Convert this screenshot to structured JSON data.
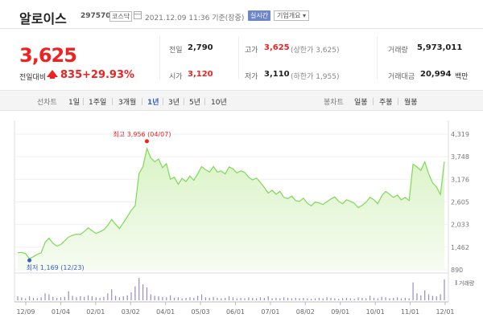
{
  "header": {
    "name": "알로이스",
    "code": "297570",
    "market": "코스닥",
    "datetime": "2021.12.09 11:36 기준(장중)",
    "realtime_label": "실시간",
    "overview_label": "기업개요 ▾"
  },
  "summary": {
    "price": "3,625",
    "change_label": "전일대비",
    "change_value": "835",
    "change_rate": "+29.93%",
    "prev_close_label": "전일",
    "prev_close": "2,790",
    "open_label": "시가",
    "open": "3,120",
    "high_label": "고가",
    "high": "3,625",
    "upper_limit": "(상한가 3,625)",
    "low_label": "저가",
    "low": "3,110",
    "lower_limit": "(하한가 1,955)",
    "volume_label": "거래량",
    "volume": "5,973,011",
    "amount_label": "거래대금",
    "amount": "20,994",
    "amount_unit": "백만"
  },
  "period_tabs": {
    "line_chart_label": "선차트",
    "items": [
      "1일",
      "1주일",
      "3개월",
      "1년",
      "3년",
      "5년",
      "10년"
    ],
    "active": "1년",
    "candle_label": "봉차트",
    "candle_items": [
      "일봉",
      "주봉",
      "월봉"
    ]
  },
  "chart_data": {
    "type": "area",
    "x_ticks": [
      "12/09",
      "01/04",
      "02/01",
      "03/02",
      "04/01",
      "05/03",
      "06/01",
      "07/01",
      "08/02",
      "09/01",
      "10/01",
      "11/01",
      "12/01"
    ],
    "y_ticks": [
      "4,319",
      "3,748",
      "3,176",
      "2,605",
      "2,033",
      "1,462",
      "890"
    ],
    "ylim": [
      890,
      4319
    ],
    "high_annotation": "최고 3,956 (04/07)",
    "low_annotation": "최저 1,169 (12/23)",
    "volume_label": "거래량",
    "colors": {
      "line": "#7ed957",
      "fill_top": "#d9f3c5",
      "fill_bottom": "#f6fcf1",
      "volume": "#9a8bc4"
    },
    "series": [
      {
        "values": [
          1320,
          1330,
          1300,
          1169,
          1220,
          1280,
          1320,
          1580,
          1690,
          1560,
          1490,
          1530,
          1620,
          1720,
          1760,
          1790,
          1780,
          1860,
          1950,
          1880,
          1810,
          1850,
          1900,
          2010,
          2160,
          2040,
          1930,
          2080,
          2230,
          2390,
          2510,
          3320,
          3500,
          3956,
          3720,
          3620,
          3690,
          3470,
          3570,
          3180,
          3230,
          3050,
          3200,
          3120,
          3260,
          3150,
          3320,
          3500,
          3420,
          3360,
          3500,
          3360,
          3390,
          3310,
          3490,
          3440,
          3340,
          3390,
          3350,
          3230,
          3160,
          3210,
          3100,
          2970,
          2830,
          2900,
          2800,
          2870,
          2720,
          2690,
          2750,
          2640,
          2620,
          2700,
          2570,
          2510,
          2600,
          2580,
          2540,
          2610,
          2680,
          2730,
          2620,
          2560,
          2660,
          2620,
          2570,
          2460,
          2520,
          2600,
          2720,
          2660,
          2560,
          2760,
          2870,
          2800,
          2720,
          2780,
          2660,
          2720,
          2640,
          3560,
          3490,
          3400,
          3620,
          3310,
          3090,
          2980,
          2790,
          3625
        ]
      }
    ],
    "volume_values": [
      8,
      6,
      4,
      8,
      5,
      4,
      6,
      14,
      12,
      7,
      5,
      6,
      7,
      18,
      9,
      6,
      8,
      7,
      10,
      8,
      6,
      5,
      7,
      14,
      22,
      9,
      6,
      8,
      10,
      16,
      28,
      45,
      32,
      26,
      12,
      9,
      8,
      7,
      6,
      10,
      5,
      6,
      4,
      5,
      6,
      5,
      9,
      12,
      6,
      5,
      7,
      5,
      4,
      5,
      8,
      6,
      4,
      5,
      4,
      6,
      5,
      4,
      6,
      5,
      8,
      4,
      5,
      4,
      6,
      5,
      4,
      5,
      4,
      5,
      4,
      3,
      4,
      5,
      4,
      6,
      5,
      4,
      3,
      4,
      5,
      4,
      3,
      6,
      5,
      4,
      9,
      5,
      4,
      7,
      6,
      4,
      5,
      6,
      4,
      5,
      4,
      36,
      14,
      10,
      20,
      12,
      9,
      8,
      12,
      42
    ]
  }
}
